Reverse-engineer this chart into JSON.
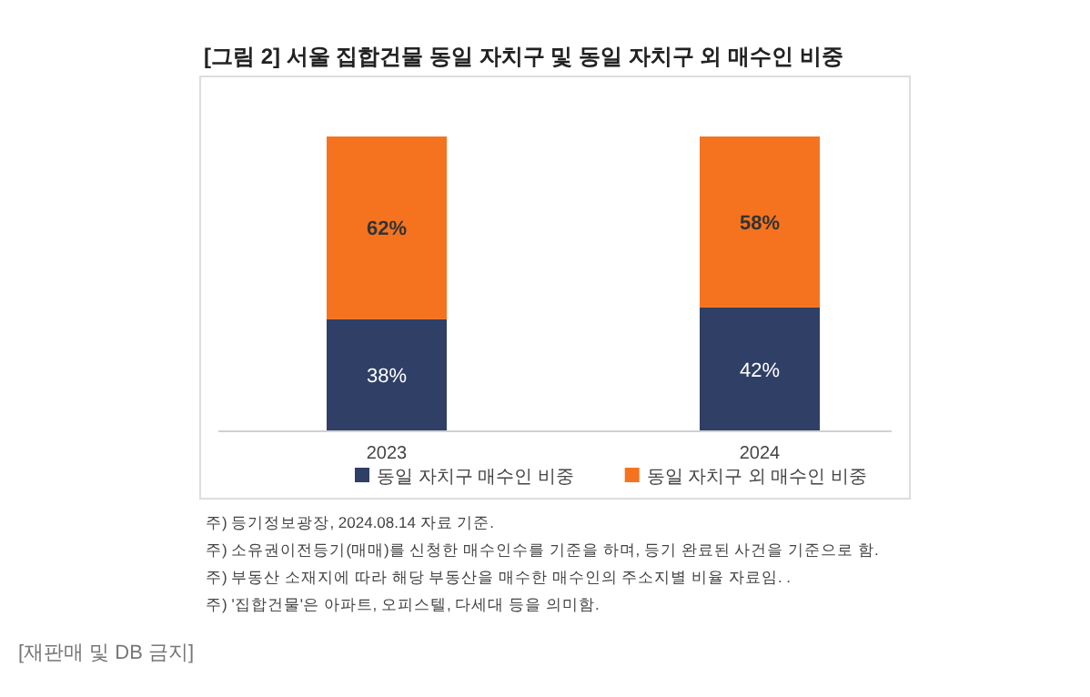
{
  "chart_data": {
    "type": "bar",
    "stacked": true,
    "legend": "bottom",
    "title": "[그림 2] 서울 집합건물 동일 자치구 및 동일 자치구 외 매수인 비중",
    "categories": [
      "2023",
      "2024"
    ],
    "series": [
      {
        "name": "동일 자치구 매수인 비중",
        "color": "#2f3f65",
        "values": [
          38,
          42
        ],
        "value_labels": [
          "38%",
          "42%"
        ]
      },
      {
        "name": "동일 자치구 외 매수인 비중",
        "color": "#f5731f",
        "values": [
          62,
          58
        ],
        "value_labels": [
          "62%",
          "58%"
        ]
      }
    ],
    "annotations": [
      "주) 등기정보광장, 2024.08.14 자료 기준.",
      "주) 소유권이전등기(매매)를 신청한 매수인수를 기준을 하며, 등기 완료된 사건을 기준으로 함.",
      "주) 부동산 소재지에 따라 해당 부동산을 매수한 매수인의 주소지별 비율 자료임. .",
      "주) '집합건물'은 아파트, 오피스텔, 다세대 등을 의미함.",
      "[재판매 및 DB 금지]"
    ]
  }
}
